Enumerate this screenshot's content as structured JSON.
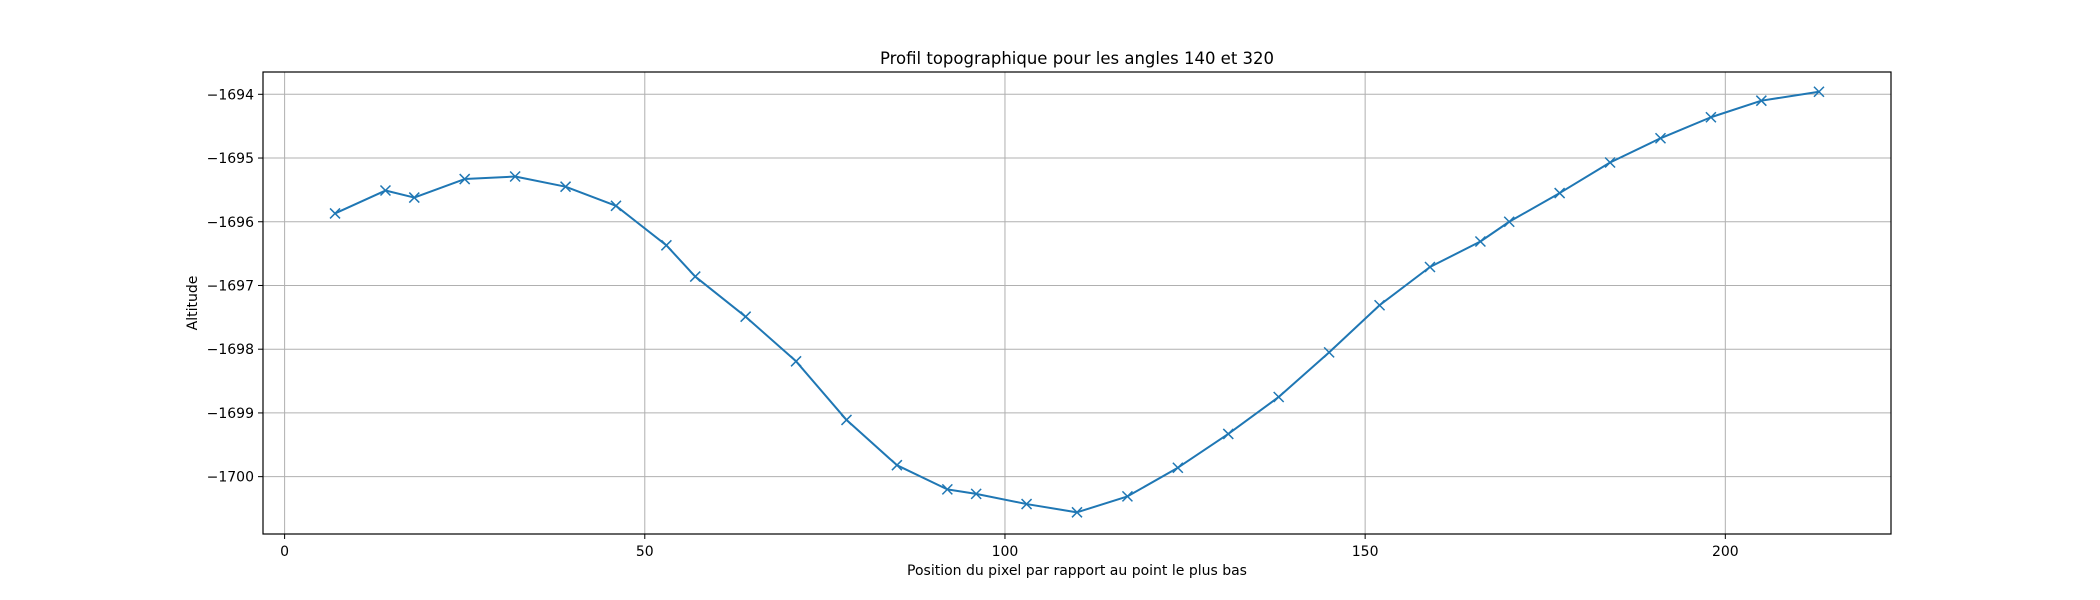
{
  "chart_data": {
    "type": "line",
    "title": "Profil topographique pour les angles 140 et 320",
    "xlabel": "Position du pixel par rapport au point le plus bas",
    "ylabel": "Altitude",
    "xlim": [
      -3,
      223
    ],
    "ylim": [
      -1700.9,
      -1693.65
    ],
    "xticks": [
      0,
      50,
      100,
      150,
      200
    ],
    "yticks": [
      -1694,
      -1695,
      -1696,
      -1697,
      -1698,
      -1699,
      -1700
    ],
    "ytick_labels": [
      "−1694",
      "−1695",
      "−1696",
      "−1697",
      "−1698",
      "−1699",
      "−1700"
    ],
    "grid": true,
    "marker": "x",
    "color": "#1f77b4",
    "series": [
      {
        "x": [
          7,
          14,
          18,
          25,
          32,
          39,
          46,
          53,
          57,
          64,
          71,
          78,
          85,
          92,
          96,
          103,
          110,
          117,
          124,
          131,
          138,
          145,
          152,
          159,
          166,
          170,
          177,
          184,
          191,
          198,
          205,
          213
        ],
        "y": [
          -1695.87,
          -1695.51,
          -1695.62,
          -1695.33,
          -1695.29,
          -1695.45,
          -1695.75,
          -1696.37,
          -1696.86,
          -1697.49,
          -1698.19,
          -1699.11,
          -1699.82,
          -1700.2,
          -1700.27,
          -1700.43,
          -1700.56,
          -1700.31,
          -1699.86,
          -1699.33,
          -1698.75,
          -1698.05,
          -1697.31,
          -1696.71,
          -1696.31,
          -1696.0,
          -1695.55,
          -1695.07,
          -1694.69,
          -1694.36,
          -1694.1,
          -1693.96
        ]
      }
    ]
  }
}
